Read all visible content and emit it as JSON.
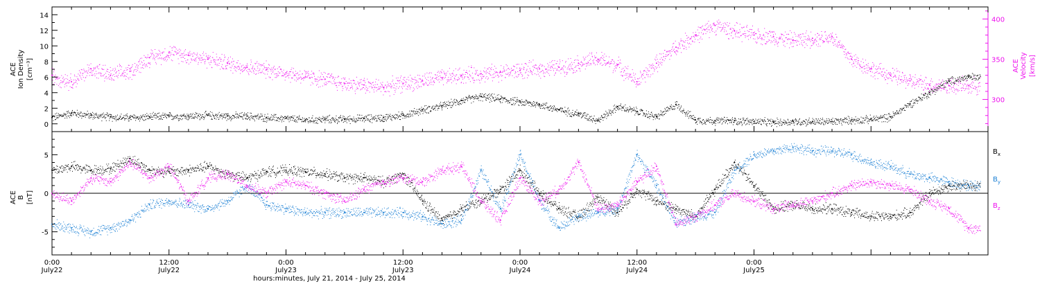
{
  "colors": {
    "black": "#000000",
    "magenta": "#ee11ee",
    "blue": "#1a7fd4"
  },
  "chart_data": [
    {
      "type": "scatter",
      "panel": "top",
      "x_unit": "hours since 0:00 July 22",
      "xlim": [
        0,
        96
      ],
      "ylim": [
        -1,
        15
      ],
      "y2lim": [
        260,
        415
      ],
      "left_axis_label": [
        "ACE",
        "Ion Density",
        "[cm⁻³]"
      ],
      "right_axis_label": [
        "ACE",
        "Velocity",
        "[km/s]"
      ],
      "y_ticks": [
        "0",
        "2",
        "4",
        "6",
        "8",
        "10",
        "12",
        "14"
      ],
      "y_tick_values": [
        0,
        2,
        4,
        6,
        8,
        10,
        12,
        14
      ],
      "y2_ticks": [
        "300",
        "350",
        "400"
      ],
      "y2_tick_values": [
        300,
        350,
        400
      ],
      "series": [
        {
          "key": "density",
          "color_key": "black",
          "axis": "left",
          "x": [
            0,
            2,
            4,
            6,
            8,
            10,
            12,
            14,
            16,
            18,
            20,
            22,
            24,
            26,
            28,
            30,
            32,
            34,
            36,
            38,
            40,
            42,
            44,
            46,
            48,
            50,
            52,
            54,
            56,
            58,
            60,
            62,
            64,
            66,
            68,
            70,
            72,
            74,
            76,
            78,
            80,
            82,
            84,
            86,
            88,
            90,
            92,
            94
          ],
          "y": [
            0.8,
            1.4,
            1.1,
            0.9,
            0.8,
            0.9,
            1.0,
            1.0,
            1.1,
            1.0,
            1.0,
            0.8,
            0.7,
            0.5,
            0.6,
            0.6,
            0.7,
            0.8,
            1.1,
            1.8,
            2.3,
            3.0,
            3.5,
            3.2,
            2.8,
            2.5,
            1.8,
            1.3,
            0.5,
            2.2,
            1.6,
            0.9,
            2.5,
            0.5,
            0.4,
            0.4,
            0.3,
            0.2,
            0.3,
            0.3,
            0.3,
            0.5,
            0.6,
            0.9,
            2.6,
            4.0,
            5.5,
            6.0
          ]
        },
        {
          "key": "velocity",
          "color_key": "magenta",
          "axis": "right",
          "x": [
            0,
            2,
            4,
            6,
            8,
            10,
            12,
            14,
            16,
            18,
            20,
            22,
            24,
            26,
            28,
            30,
            32,
            34,
            36,
            38,
            40,
            42,
            44,
            46,
            48,
            50,
            52,
            54,
            56,
            58,
            60,
            62,
            64,
            66,
            68,
            70,
            72,
            74,
            76,
            78,
            80,
            82,
            84,
            86,
            88,
            90,
            92,
            94
          ],
          "y": [
            330,
            322,
            338,
            330,
            335,
            352,
            358,
            355,
            350,
            345,
            340,
            337,
            333,
            328,
            325,
            320,
            318,
            315,
            320,
            323,
            327,
            330,
            332,
            334,
            336,
            338,
            340,
            345,
            350,
            343,
            322,
            345,
            365,
            380,
            392,
            385,
            380,
            378,
            374,
            376,
            378,
            350,
            338,
            330,
            323,
            318,
            317,
            317
          ]
        }
      ]
    },
    {
      "type": "scatter",
      "panel": "bottom",
      "x_unit": "hours since 0:00 July 22",
      "xlim": [
        0,
        96
      ],
      "ylim": [
        -8,
        8
      ],
      "left_axis_label": [
        "ACE",
        "B",
        "[nT]"
      ],
      "y_ticks": [
        "-5",
        "0",
        "5"
      ],
      "y_tick_values": [
        -5,
        0,
        5
      ],
      "zero_line": true,
      "x_tick_labels": [
        {
          "x": 0,
          "time": "0:00",
          "date": "July22"
        },
        {
          "x": 12,
          "time": "12:00",
          "date": "July22"
        },
        {
          "x": 24,
          "time": "0:00",
          "date": "July23"
        },
        {
          "x": 36,
          "time": "12:00",
          "date": "July23"
        },
        {
          "x": 48,
          "time": "0:00",
          "date": "July24"
        },
        {
          "x": 60,
          "time": "12:00",
          "date": "July24"
        },
        {
          "x": 72,
          "time": "0:00",
          "date": "July25"
        }
      ],
      "xlabel": "hours:minutes, July 21, 2014 - July 25, 2014",
      "legend": [
        {
          "label": "B",
          "sub": "x",
          "color_key": "black"
        },
        {
          "label": "B",
          "sub": "y",
          "color_key": "blue"
        },
        {
          "label": "B",
          "sub": "z",
          "color_key": "magenta"
        }
      ],
      "legend_position": "right",
      "series": [
        {
          "key": "bx",
          "color_key": "black",
          "x": [
            0,
            2,
            4,
            6,
            8,
            10,
            12,
            14,
            16,
            18,
            20,
            22,
            24,
            26,
            28,
            30,
            32,
            34,
            36,
            38,
            40,
            42,
            44,
            46,
            48,
            50,
            52,
            54,
            56,
            58,
            60,
            62,
            64,
            66,
            68,
            70,
            72,
            74,
            76,
            78,
            80,
            82,
            84,
            86,
            88,
            90,
            92,
            94
          ],
          "y": [
            3,
            3.5,
            3,
            3.2,
            4.5,
            3,
            2.8,
            3,
            3.5,
            2.5,
            2,
            2.8,
            3,
            2.8,
            2.5,
            2,
            2,
            1.5,
            2.5,
            -1,
            -3.5,
            -2,
            -1,
            0.5,
            3,
            0,
            -2,
            -3,
            -0.5,
            -2.5,
            0.5,
            -1,
            -2,
            -3,
            0.5,
            4,
            1,
            -2,
            -1.5,
            -2,
            -2,
            -2.5,
            -3,
            -3,
            -2.5,
            0,
            1,
            1
          ]
        },
        {
          "key": "by",
          "color_key": "blue",
          "x": [
            0,
            2,
            4,
            6,
            8,
            10,
            12,
            14,
            16,
            18,
            20,
            22,
            24,
            26,
            28,
            30,
            32,
            34,
            36,
            38,
            40,
            42,
            44,
            46,
            48,
            50,
            52,
            54,
            56,
            58,
            60,
            62,
            64,
            66,
            68,
            70,
            72,
            74,
            76,
            78,
            80,
            82,
            84,
            86,
            88,
            90,
            92,
            94
          ],
          "y": [
            -4,
            -4.5,
            -5,
            -4.5,
            -3.5,
            -1.5,
            -1,
            -1.5,
            -2,
            -1,
            1,
            -1.5,
            -2,
            -2.5,
            -2.5,
            -2.5,
            -2.5,
            -2.5,
            -2.5,
            -3,
            -4,
            -3.5,
            3,
            -2,
            5,
            -1,
            -4.5,
            -3,
            -2.5,
            -2,
            5,
            1,
            -4,
            -3,
            -2.5,
            3,
            5,
            5.5,
            6,
            5.5,
            5.5,
            5,
            4,
            3.5,
            2.5,
            2,
            1.5,
            1
          ]
        },
        {
          "key": "bz",
          "color_key": "magenta",
          "x": [
            0,
            2,
            4,
            6,
            8,
            10,
            12,
            14,
            16,
            18,
            20,
            22,
            24,
            26,
            28,
            30,
            32,
            34,
            36,
            38,
            40,
            42,
            44,
            46,
            48,
            50,
            52,
            54,
            56,
            58,
            60,
            62,
            64,
            66,
            68,
            70,
            72,
            74,
            76,
            78,
            80,
            82,
            84,
            86,
            88,
            90,
            92,
            94
          ],
          "y": [
            0,
            -1,
            2,
            1.5,
            4,
            2,
            3.5,
            -1,
            2,
            2.5,
            1,
            0,
            1.5,
            1,
            0,
            -1,
            0.5,
            1.5,
            2,
            1.5,
            3,
            3.5,
            -1,
            -3.5,
            2,
            -1,
            0.5,
            4,
            -2,
            -1.5,
            1.5,
            3.5,
            -4,
            -3,
            -1.5,
            0,
            -1,
            -2,
            -1.5,
            -1,
            0,
            1,
            1.5,
            1,
            0.5,
            -1,
            -2,
            -4.5
          ]
        }
      ]
    }
  ]
}
